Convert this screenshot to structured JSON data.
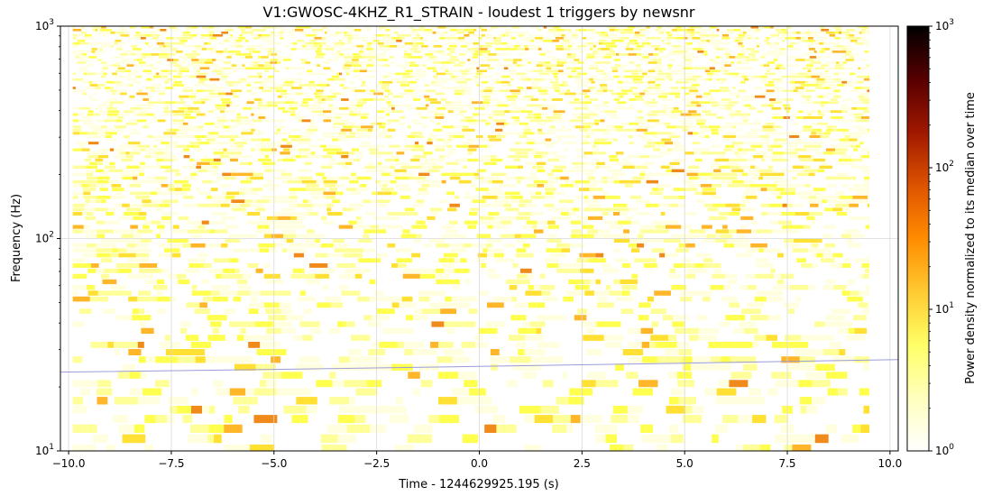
{
  "chart_data": {
    "type": "heatmap",
    "title": "V1:GWOSC-4KHZ_R1_STRAIN - loudest 1 triggers by newsnr",
    "xlabel": "Time - 1244629925.195 (s)",
    "ylabel": "Frequency (Hz)",
    "colorbar_label": "Power density normalized to its median over time",
    "xlim": [
      -10.2,
      10.2
    ],
    "ylim": [
      10,
      1000
    ],
    "yscale": "log",
    "color_range": [
      1,
      1000
    ],
    "color_scale": "log",
    "colormap": "afmhot_r",
    "grid": true,
    "x_ticks": [
      {
        "value": -10.0,
        "label": "−10.0"
      },
      {
        "value": -7.5,
        "label": "−7.5"
      },
      {
        "value": -5.0,
        "label": "−5.0"
      },
      {
        "value": -2.5,
        "label": "−2.5"
      },
      {
        "value": 0.0,
        "label": "0.0"
      },
      {
        "value": 2.5,
        "label": "2.5"
      },
      {
        "value": 5.0,
        "label": "5.0"
      },
      {
        "value": 7.5,
        "label": "7.5"
      },
      {
        "value": 10.0,
        "label": "10.0"
      }
    ],
    "y_ticks": [
      {
        "value": 10,
        "base": "10",
        "exp": "1"
      },
      {
        "value": 100,
        "base": "10",
        "exp": "2"
      },
      {
        "value": 1000,
        "base": "10",
        "exp": "3"
      }
    ],
    "colorbar_ticks": [
      {
        "value": 1,
        "base": "10",
        "exp": "0"
      },
      {
        "value": 10,
        "base": "10",
        "exp": "1"
      },
      {
        "value": 100,
        "base": "10",
        "exp": "2"
      },
      {
        "value": 1000,
        "base": "10",
        "exp": "3"
      }
    ],
    "spectrogram_extent": {
      "x": [
        -9.9,
        9.5
      ],
      "y": [
        10,
        1000
      ]
    },
    "trigger_track": {
      "x": [
        -10.2,
        -5,
        0,
        5,
        10.2
      ],
      "y": [
        23.5,
        24.2,
        25.0,
        25.9,
        26.9
      ],
      "color": "#9b9bd9"
    }
  }
}
